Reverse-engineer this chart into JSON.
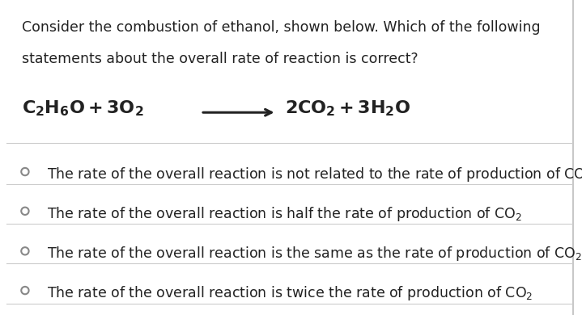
{
  "background_color": "#ffffff",
  "border_color": "#c8c8c8",
  "question_line1": "Consider the combustion of ethanol, shown below. Which of the following",
  "question_line2": "statements about the overall rate of reaction is correct?",
  "options": [
    "The rate of the overall reaction is not related to the rate of production of CO",
    "The rate of the overall reaction is half the rate of production of CO",
    "The rate of the overall reaction is the same as the rate of production of CO",
    "The rate of the overall reaction is twice the rate of production of CO"
  ],
  "text_color": "#222222",
  "line_color": "#cccccc",
  "circle_color": "#888888",
  "question_fontsize": 12.5,
  "equation_fontsize": 16,
  "option_fontsize": 12.5
}
